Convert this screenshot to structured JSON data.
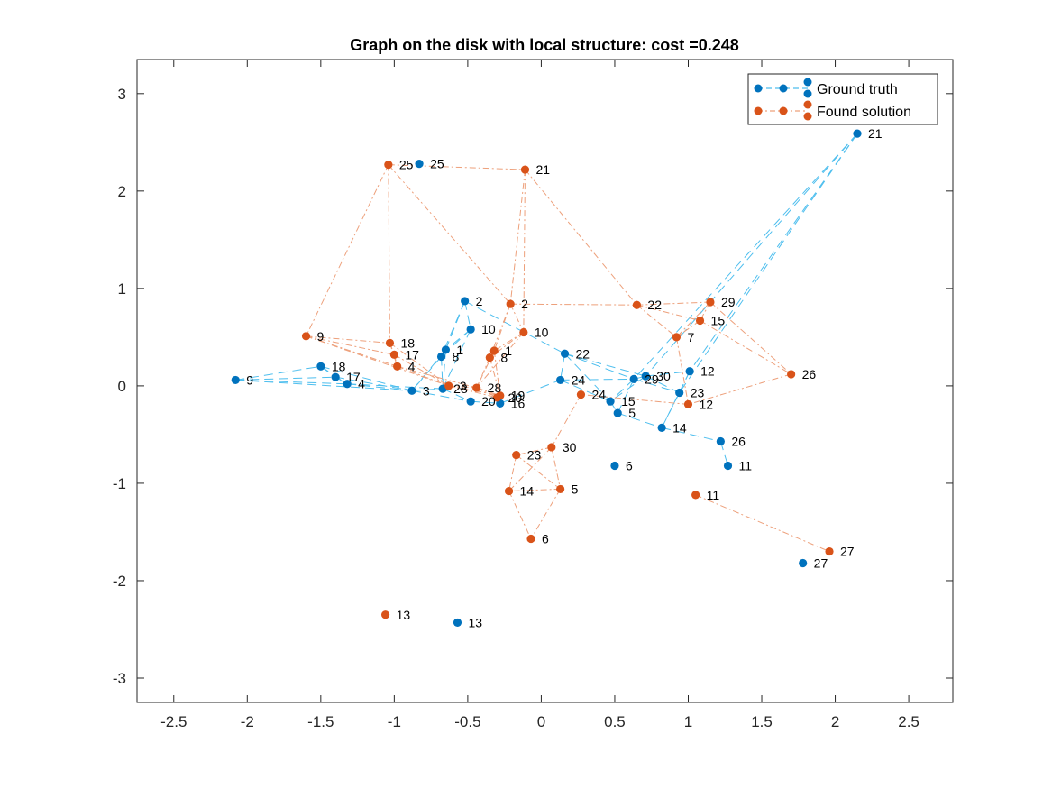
{
  "chart_data": {
    "type": "scatter",
    "title": "Graph on the disk with local structure: cost =0.248",
    "xlim": [
      -2.75,
      2.8
    ],
    "ylim": [
      -3.25,
      3.35
    ],
    "xticks": [
      "-2.5",
      "-2",
      "-1.5",
      "-1",
      "-0.5",
      "0",
      "0.5",
      "1",
      "1.5",
      "2",
      "2.5"
    ],
    "yticks": [
      "3",
      "2",
      "1",
      "0",
      "-1",
      "-2",
      "-3"
    ],
    "legend_position": "top-right",
    "series": [
      {
        "name": "Ground truth",
        "color": "#0072BD",
        "edge_color": "#4DBEEE",
        "points": [
          {
            "label": "2",
            "x": -0.52,
            "y": 0.87
          },
          {
            "label": "10",
            "x": -0.48,
            "y": 0.58
          },
          {
            "label": "1",
            "x": -0.65,
            "y": 0.37
          },
          {
            "label": "8",
            "x": -0.68,
            "y": 0.3
          },
          {
            "label": "9",
            "x": -2.08,
            "y": 0.06
          },
          {
            "label": "18",
            "x": -1.5,
            "y": 0.2
          },
          {
            "label": "17",
            "x": -1.4,
            "y": 0.09
          },
          {
            "label": "4",
            "x": -1.32,
            "y": 0.02
          },
          {
            "label": "3",
            "x": -0.88,
            "y": -0.05
          },
          {
            "label": "28",
            "x": -0.67,
            "y": -0.03
          },
          {
            "label": "20",
            "x": -0.48,
            "y": -0.16
          },
          {
            "label": "16",
            "x": -0.28,
            "y": -0.18
          },
          {
            "label": "25",
            "x": -0.83,
            "y": 2.28
          },
          {
            "label": "21",
            "x": 2.15,
            "y": 2.59
          },
          {
            "label": "22",
            "x": 0.16,
            "y": 0.33
          },
          {
            "label": "24",
            "x": 0.13,
            "y": 0.06
          },
          {
            "label": "29",
            "x": 0.63,
            "y": 0.07
          },
          {
            "label": "30",
            "x": 0.71,
            "y": 0.1
          },
          {
            "label": "12",
            "x": 1.01,
            "y": 0.15
          },
          {
            "label": "15",
            "x": 0.47,
            "y": -0.16
          },
          {
            "label": "5",
            "x": 0.52,
            "y": -0.28
          },
          {
            "label": "23",
            "x": 0.94,
            "y": -0.07
          },
          {
            "label": "14",
            "x": 0.82,
            "y": -0.43
          },
          {
            "label": "26",
            "x": 1.22,
            "y": -0.57
          },
          {
            "label": "6",
            "x": 0.5,
            "y": -0.82
          },
          {
            "label": "11",
            "x": 1.27,
            "y": -0.82
          },
          {
            "label": "27",
            "x": 1.78,
            "y": -1.82
          },
          {
            "label": "13",
            "x": -0.57,
            "y": -2.43
          }
        ]
      },
      {
        "name": "Found solution",
        "color": "#D95319",
        "edge_color": "#EDA07B",
        "points": [
          {
            "label": "25",
            "x": -1.04,
            "y": 2.27
          },
          {
            "label": "21",
            "x": -0.11,
            "y": 2.22
          },
          {
            "label": "2",
            "x": -0.21,
            "y": 0.84
          },
          {
            "label": "10",
            "x": -0.12,
            "y": 0.55
          },
          {
            "label": "1",
            "x": -0.32,
            "y": 0.36
          },
          {
            "label": "8",
            "x": -0.35,
            "y": 0.29
          },
          {
            "label": "9",
            "x": -1.6,
            "y": 0.51
          },
          {
            "label": "18",
            "x": -1.03,
            "y": 0.44
          },
          {
            "label": "17",
            "x": -1.0,
            "y": 0.32
          },
          {
            "label": "4",
            "x": -0.98,
            "y": 0.2
          },
          {
            "label": "3",
            "x": -0.63,
            "y": 0.0
          },
          {
            "label": "28",
            "x": -0.44,
            "y": -0.02
          },
          {
            "label": "20",
            "x": -0.3,
            "y": -0.12
          },
          {
            "label": "19",
            "x": -0.28,
            "y": -0.1
          },
          {
            "label": "22",
            "x": 0.65,
            "y": 0.83
          },
          {
            "label": "29",
            "x": 1.15,
            "y": 0.86
          },
          {
            "label": "15",
            "x": 1.08,
            "y": 0.67
          },
          {
            "label": "7",
            "x": 0.92,
            "y": 0.5
          },
          {
            "label": "26",
            "x": 1.7,
            "y": 0.12
          },
          {
            "label": "12",
            "x": 1.0,
            "y": -0.19
          },
          {
            "label": "24",
            "x": 0.27,
            "y": -0.09
          },
          {
            "label": "30",
            "x": 0.07,
            "y": -0.63
          },
          {
            "label": "23",
            "x": -0.17,
            "y": -0.71
          },
          {
            "label": "5",
            "x": 0.13,
            "y": -1.06
          },
          {
            "label": "14",
            "x": -0.22,
            "y": -1.08
          },
          {
            "label": "11",
            "x": 1.05,
            "y": -1.12
          },
          {
            "label": "6",
            "x": -0.07,
            "y": -1.57
          },
          {
            "label": "27",
            "x": 1.96,
            "y": -1.7
          },
          {
            "label": "13",
            "x": -1.06,
            "y": -2.35
          }
        ]
      }
    ]
  }
}
